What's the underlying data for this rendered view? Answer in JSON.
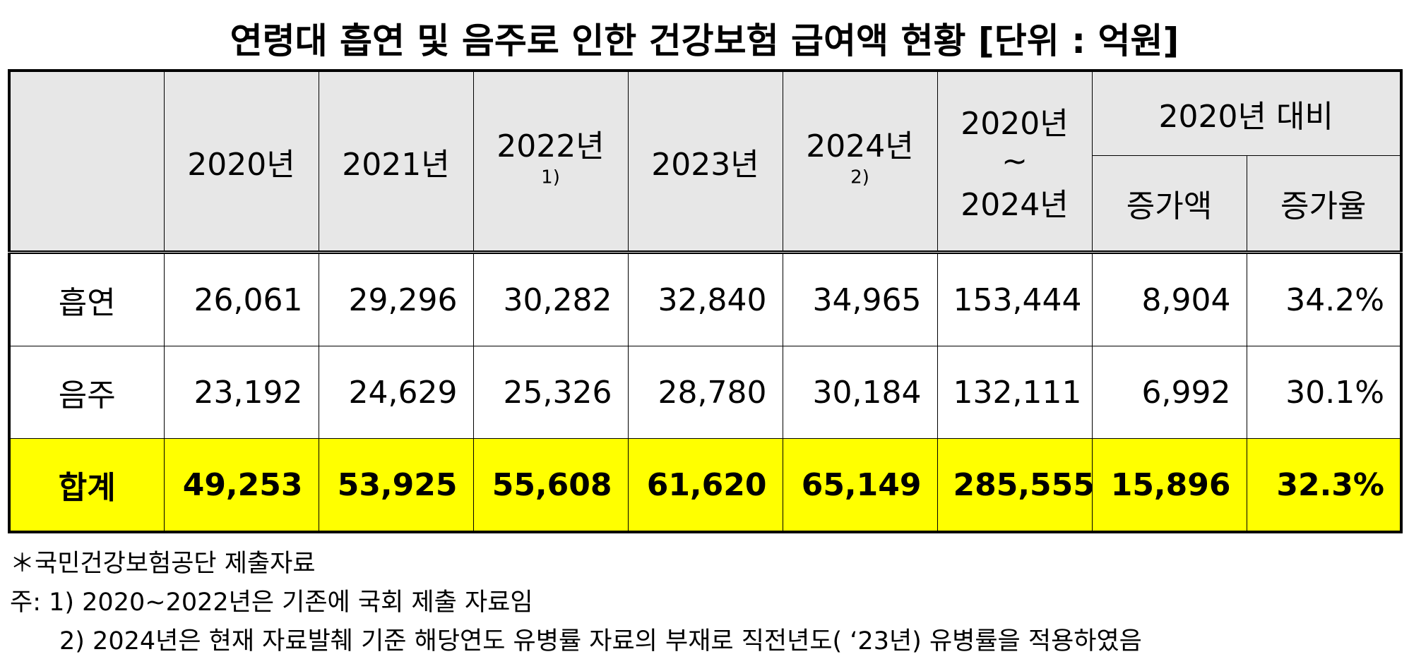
{
  "title": "연령대 흡연 및 음주로 인한 건강보험 급여액 현황 [단위 : 억원]",
  "table": {
    "header": {
      "years": [
        {
          "text": "2020년",
          "note": null
        },
        {
          "text": "2021년",
          "note": null
        },
        {
          "text": "2022년",
          "note": "1)"
        },
        {
          "text": "2023년",
          "note": null
        },
        {
          "text": "2024년",
          "note": "2)"
        }
      ],
      "total": [
        "2020년",
        "~",
        "2024년"
      ],
      "group": "2020년 대비",
      "sub": [
        "증가액",
        "증가율"
      ]
    },
    "rows": [
      {
        "label": "흡연",
        "cells": [
          "26,061",
          "29,296",
          "30,282",
          "32,840",
          "34,965",
          "153,444",
          "8,904",
          "34.2%"
        ]
      },
      {
        "label": "음주",
        "cells": [
          "23,192",
          "24,629",
          "25,326",
          "28,780",
          "30,184",
          "132,111",
          "6,992",
          "30.1%"
        ]
      },
      {
        "label": "합계",
        "cells": [
          "49,253",
          "53,925",
          "55,608",
          "61,620",
          "65,149",
          "285,555",
          "15,896",
          "32.3%"
        ]
      }
    ]
  },
  "notes": [
    "＊국민건강보험공단 제출자료",
    "주: 1) 2020~2022년은 기존에 국회 제출 자료임",
    "2) 2024년은 현재 자료발췌 기준 해당연도 유병률 자료의 부재로 직전년도( ‘23년) 유병률을 적용하였음"
  ]
}
